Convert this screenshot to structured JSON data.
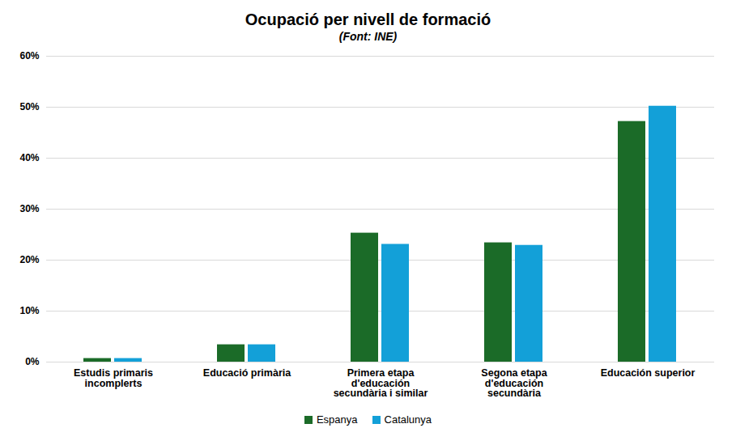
{
  "chart_data": {
    "type": "bar",
    "title": "Ocupació per nivell de formació",
    "subtitle": "(Font: INE)",
    "categories": [
      "Estudis primaris incomplerts",
      "Educació primària",
      "Primera etapa d'educación secundària i similar",
      "Segona etapa d'educación secundària",
      "Educación superior"
    ],
    "series": [
      {
        "name": "Espanya",
        "color": "#1b6b28",
        "values": [
          0.7,
          3.4,
          25.3,
          23.4,
          47.2
        ]
      },
      {
        "name": "Catalunya",
        "color": "#13a0d8",
        "values": [
          0.7,
          3.4,
          23.1,
          22.9,
          50.2
        ]
      }
    ],
    "ylim": [
      0,
      60
    ],
    "yticks": [
      {
        "value": 0,
        "label": "0%"
      },
      {
        "value": 10,
        "label": "10%"
      },
      {
        "value": 20,
        "label": "20%"
      },
      {
        "value": 30,
        "label": "30%"
      },
      {
        "value": 40,
        "label": "40%"
      },
      {
        "value": 50,
        "label": "50%"
      },
      {
        "value": 60,
        "label": "60%"
      }
    ],
    "grid": true,
    "legend": "bottom"
  }
}
